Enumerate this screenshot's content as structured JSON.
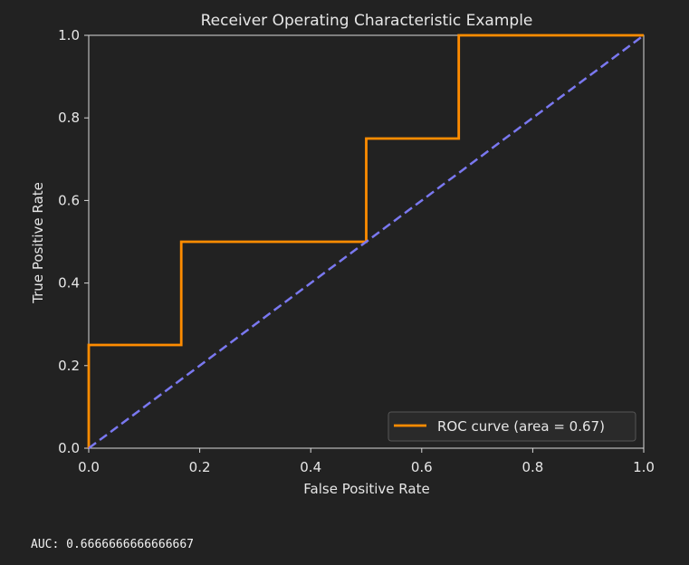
{
  "chart_data": {
    "type": "line",
    "title": "Receiver Operating Characteristic Example",
    "xlabel": "False Positive Rate",
    "ylabel": "True Positive Rate",
    "xlim": [
      0.0,
      1.0
    ],
    "ylim": [
      0.0,
      1.0
    ],
    "xticks": [
      "0.0",
      "0.2",
      "0.4",
      "0.6",
      "0.8",
      "1.0"
    ],
    "yticks": [
      "0.0",
      "0.2",
      "0.4",
      "0.6",
      "0.8",
      "1.0"
    ],
    "grid": false,
    "legend_position": "lower-right",
    "series": [
      {
        "name": "ROC curve (area = 0.67)",
        "style": "solid",
        "color": "#ff8c00",
        "x": [
          0.0,
          0.0,
          0.1667,
          0.1667,
          0.5,
          0.5,
          0.6667,
          0.6667,
          1.0
        ],
        "y": [
          0.0,
          0.25,
          0.25,
          0.5,
          0.5,
          0.75,
          0.75,
          1.0,
          1.0
        ]
      },
      {
        "style": "dashed",
        "color": "#7a78f0",
        "x": [
          0.0,
          1.0
        ],
        "y": [
          0.0,
          1.0
        ]
      }
    ]
  },
  "output": {
    "auc_text": "AUC: 0.6666666666666667"
  },
  "colors": {
    "background": "#222222",
    "axes_edge": "#d9d9d9",
    "text": "#e6e6e6",
    "legend_bg": "#2a2a2a",
    "legend_edge": "#555555"
  }
}
